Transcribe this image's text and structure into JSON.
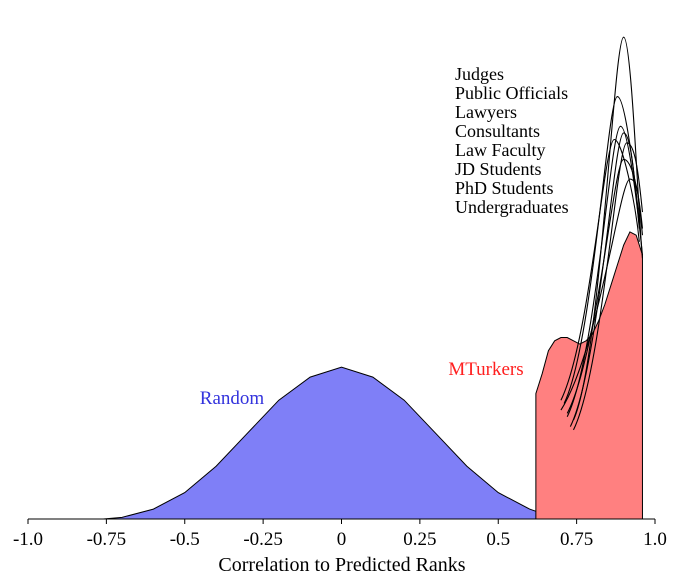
{
  "chart_data": {
    "type": "area",
    "title": "",
    "xlabel": "Correlation to Predicted Ranks",
    "ylabel": "",
    "xlim": [
      -1.0,
      1.0
    ],
    "ylim": [
      0,
      1.0
    ],
    "grid": false,
    "x_ticks": [
      -1.0,
      -0.75,
      -0.5,
      -0.25,
      0,
      0.25,
      0.5,
      0.75,
      1.0
    ],
    "x_tick_labels": [
      "-1.0",
      "-0.75",
      "-0.5",
      "-0.25",
      "0",
      "0.25",
      "0.5",
      "0.75",
      "1.0"
    ],
    "labels": {
      "random": "Random",
      "mturkers": "MTurkers",
      "groups": [
        "Judges",
        "Public Officials",
        "Lawyers",
        "Consultants",
        "Law Faculty",
        "JD Students",
        "PhD Students",
        "Undergraduates"
      ]
    },
    "colors": {
      "random": "#7f7ff7",
      "mturkers": "#ff8080",
      "lines": "#000000"
    },
    "series": [
      {
        "name": "Random",
        "kind": "filled-density",
        "color": "#7f7ff7",
        "x": [
          -0.76,
          -0.7,
          -0.6,
          -0.5,
          -0.4,
          -0.3,
          -0.2,
          -0.1,
          0.0,
          0.1,
          0.2,
          0.3,
          0.4,
          0.5,
          0.6,
          0.66
        ],
        "y": [
          0.0,
          0.005,
          0.03,
          0.08,
          0.16,
          0.26,
          0.36,
          0.43,
          0.46,
          0.43,
          0.36,
          0.26,
          0.16,
          0.08,
          0.03,
          0.01
        ]
      },
      {
        "name": "MTurkers",
        "kind": "filled-density",
        "color": "#ff8080",
        "x": [
          0.62,
          0.64,
          0.66,
          0.68,
          0.7,
          0.72,
          0.74,
          0.76,
          0.78,
          0.8,
          0.82,
          0.84,
          0.86,
          0.88,
          0.9,
          0.92,
          0.94,
          0.96
        ],
        "y": [
          0.38,
          0.44,
          0.51,
          0.54,
          0.55,
          0.55,
          0.54,
          0.53,
          0.54,
          0.56,
          0.6,
          0.65,
          0.71,
          0.77,
          0.83,
          0.87,
          0.86,
          0.8
        ]
      },
      {
        "name": "Judges",
        "kind": "line",
        "peak_x": 0.9,
        "peak_y": 1.46,
        "x0": 0.74,
        "y0": 0.3,
        "x1": 0.96,
        "y1": 0.79
      },
      {
        "name": "Public Officials",
        "kind": "line",
        "peak_x": 0.88,
        "peak_y": 1.28,
        "x0": 0.71,
        "y0": 0.35,
        "x1": 0.95,
        "y1": 0.9
      },
      {
        "name": "Lawyers",
        "kind": "line",
        "peak_x": 0.89,
        "peak_y": 1.19,
        "x0": 0.72,
        "y0": 0.31,
        "x1": 0.96,
        "y1": 0.8
      },
      {
        "name": "Consultants",
        "kind": "line",
        "peak_x": 0.9,
        "peak_y": 1.17,
        "x0": 0.73,
        "y0": 0.28,
        "x1": 0.95,
        "y1": 0.88
      },
      {
        "name": "Law Faculty",
        "kind": "line",
        "peak_x": 0.87,
        "peak_y": 1.15,
        "x0": 0.7,
        "y0": 0.36,
        "x1": 0.95,
        "y1": 0.84
      },
      {
        "name": "JD Students",
        "kind": "line",
        "peak_x": 0.91,
        "peak_y": 1.14,
        "x0": 0.74,
        "y0": 0.27,
        "x1": 0.96,
        "y1": 0.93
      },
      {
        "name": "PhD Students",
        "kind": "line",
        "peak_x": 0.9,
        "peak_y": 1.09,
        "x0": 0.72,
        "y0": 0.32,
        "x1": 0.96,
        "y1": 0.88
      },
      {
        "name": "Undergraduates",
        "kind": "line",
        "peak_x": 0.92,
        "peak_y": 1.03,
        "x0": 0.7,
        "y0": 0.33,
        "x1": 0.96,
        "y1": 0.86
      }
    ]
  }
}
